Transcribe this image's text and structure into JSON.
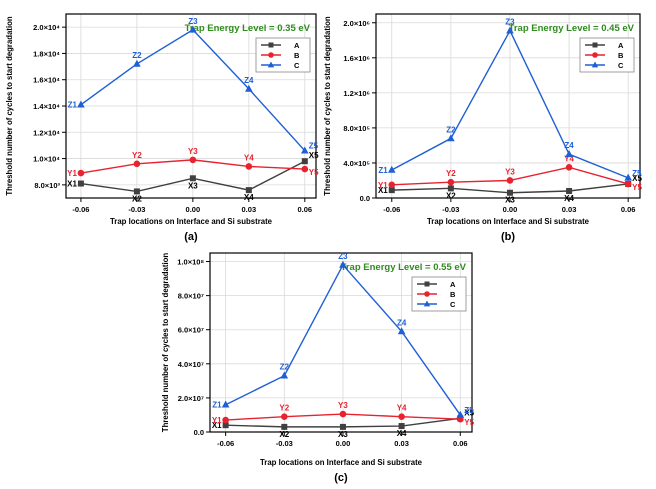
{
  "chart_data": [
    {
      "panel": "(a)",
      "type": "line",
      "title": "Trap Energy Level = 0.35 eV",
      "xlabel": "Trap locations on Interface and Si substrate",
      "ylabel": "Threshold number of cycles to start degradation",
      "x": [
        -0.06,
        -0.03,
        0.0,
        0.03,
        0.06
      ],
      "x_ticks": [
        "-0.06",
        "-0.03",
        "0.00",
        "0.03",
        "0.06"
      ],
      "xlim": [
        -0.068,
        0.066
      ],
      "ylim": [
        7000,
        21000
      ],
      "y_ticks": [
        {
          "value": 8000,
          "label": "8.0×10³"
        },
        {
          "value": 10000,
          "label": "1.0×10⁴"
        },
        {
          "value": 12000,
          "label": "1.2×10⁴"
        },
        {
          "value": 14000,
          "label": "1.4×10⁴"
        },
        {
          "value": 16000,
          "label": "1.6×10⁴"
        },
        {
          "value": 18000,
          "label": "1.8×10⁴"
        },
        {
          "value": 20000,
          "label": "2.0×10⁴"
        }
      ],
      "grid": true,
      "legend_position": "top-right",
      "series": [
        {
          "name": "A",
          "color": "#404040",
          "marker": "square",
          "values": [
            8100,
            7500,
            8500,
            7600,
            9800
          ],
          "labels": [
            "X1",
            "X2",
            "X3",
            "X4",
            "X5"
          ]
        },
        {
          "name": "B",
          "color": "#e8232f",
          "marker": "circle",
          "values": [
            8900,
            9600,
            9900,
            9400,
            9200
          ],
          "labels": [
            "Y1",
            "Y2",
            "Y3",
            "Y4",
            "Y5"
          ]
        },
        {
          "name": "C",
          "color": "#1f5fd6",
          "marker": "triangle",
          "values": [
            14100,
            17200,
            19800,
            15300,
            10600
          ],
          "labels": [
            "Z1",
            "Z2",
            "Z3",
            "Z4",
            "Z5"
          ]
        }
      ]
    },
    {
      "panel": "(b)",
      "type": "line",
      "title": "Trap Energy Level = 0.45 eV",
      "xlabel": "Trap locations on Interface and Si substrate",
      "ylabel": "Threshold number of cycles to start degradation",
      "x": [
        -0.06,
        -0.03,
        0.0,
        0.03,
        0.06
      ],
      "x_ticks": [
        "-0.06",
        "-0.03",
        "0.00",
        "0.03",
        "0.06"
      ],
      "xlim": [
        -0.068,
        0.066
      ],
      "ylim": [
        0,
        2100000
      ],
      "y_ticks": [
        {
          "value": 0,
          "label": "0.0"
        },
        {
          "value": 400000,
          "label": "4.0×10⁵"
        },
        {
          "value": 800000,
          "label": "8.0×10⁵"
        },
        {
          "value": 1200000,
          "label": "1.2×10⁶"
        },
        {
          "value": 1600000,
          "label": "1.6×10⁶"
        },
        {
          "value": 2000000,
          "label": "2.0×10⁶"
        }
      ],
      "grid": true,
      "legend_position": "top-right",
      "series": [
        {
          "name": "A",
          "color": "#404040",
          "marker": "square",
          "values": [
            90000,
            110000,
            60000,
            80000,
            160000
          ],
          "labels": [
            "X1",
            "X2",
            "X3",
            "X4",
            "X5"
          ]
        },
        {
          "name": "B",
          "color": "#e8232f",
          "marker": "circle",
          "values": [
            150000,
            180000,
            200000,
            350000,
            160000
          ],
          "labels": [
            "Y1",
            "Y2",
            "Y3",
            "Y4",
            "Y5"
          ]
        },
        {
          "name": "C",
          "color": "#1f5fd6",
          "marker": "triangle",
          "values": [
            320000,
            680000,
            1910000,
            500000,
            230000
          ],
          "labels": [
            "Z1",
            "Z2",
            "Z3",
            "Z4",
            "Z5"
          ]
        }
      ]
    },
    {
      "panel": "(c)",
      "type": "line",
      "title": "Trap Energy Level = 0.55 eV",
      "xlabel": "Trap locations on Interface and Si substrate",
      "ylabel": "Threshold number of cycles to start degradation",
      "x": [
        -0.06,
        -0.03,
        0.0,
        0.03,
        0.06
      ],
      "x_ticks": [
        "-0.06",
        "-0.03",
        "0.00",
        "0.03",
        "0.06"
      ],
      "xlim": [
        -0.068,
        0.066
      ],
      "ylim": [
        0,
        105000000
      ],
      "y_ticks": [
        {
          "value": 0,
          "label": "0.0"
        },
        {
          "value": 20000000,
          "label": "2.0×10⁷"
        },
        {
          "value": 40000000,
          "label": "4.0×10⁷"
        },
        {
          "value": 60000000,
          "label": "6.0×10⁷"
        },
        {
          "value": 80000000,
          "label": "8.0×10⁷"
        },
        {
          "value": 100000000,
          "label": "1.0×10⁸"
        }
      ],
      "grid": true,
      "legend_position": "top-right",
      "series": [
        {
          "name": "A",
          "color": "#404040",
          "marker": "square",
          "values": [
            4000000,
            3000000,
            3000000,
            3500000,
            8000000
          ],
          "labels": [
            "X1",
            "X2",
            "X3",
            "X4",
            "X5"
          ]
        },
        {
          "name": "B",
          "color": "#e8232f",
          "marker": "circle",
          "values": [
            7000000,
            9000000,
            10500000,
            9000000,
            7500000
          ],
          "labels": [
            "Y1",
            "Y2",
            "Y3",
            "Y4",
            "Y5"
          ]
        },
        {
          "name": "C",
          "color": "#1f5fd6",
          "marker": "triangle",
          "values": [
            16000000,
            33000000,
            98000000,
            59000000,
            10000000
          ],
          "labels": [
            "Z1",
            "Z2",
            "Z3",
            "Z4",
            "Z5"
          ]
        }
      ]
    }
  ]
}
